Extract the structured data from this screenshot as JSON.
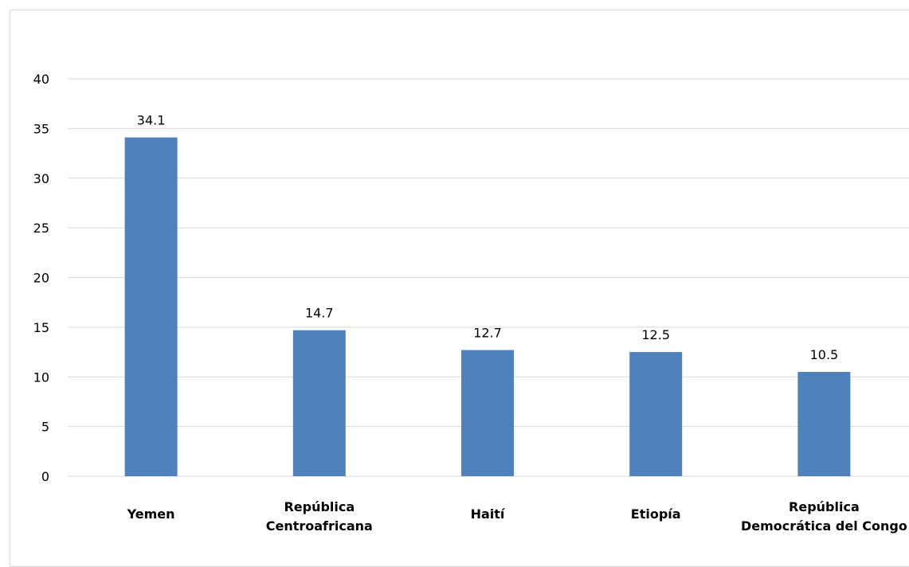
{
  "chart_data": {
    "type": "bar",
    "title": "",
    "xlabel": "",
    "ylabel": "",
    "categories": [
      [
        "Yemen"
      ],
      [
        "República",
        "Centroafricana"
      ],
      [
        "Haití"
      ],
      [
        "Etiopía"
      ],
      [
        "República",
        "Democrática del Congo"
      ]
    ],
    "values": [
      34.1,
      14.7,
      12.7,
      12.5,
      10.5
    ],
    "value_labels": [
      "34.1",
      "14.7",
      "12.7",
      "12.5",
      "10.5"
    ],
    "ylim": [
      0,
      40
    ],
    "yticks": [
      "0",
      "5",
      "10",
      "15",
      "20",
      "25",
      "30",
      "35",
      "40"
    ],
    "grid": true,
    "legend": "none",
    "bar_color": "#4F81BD",
    "grid_color": "#d9d9d9"
  }
}
